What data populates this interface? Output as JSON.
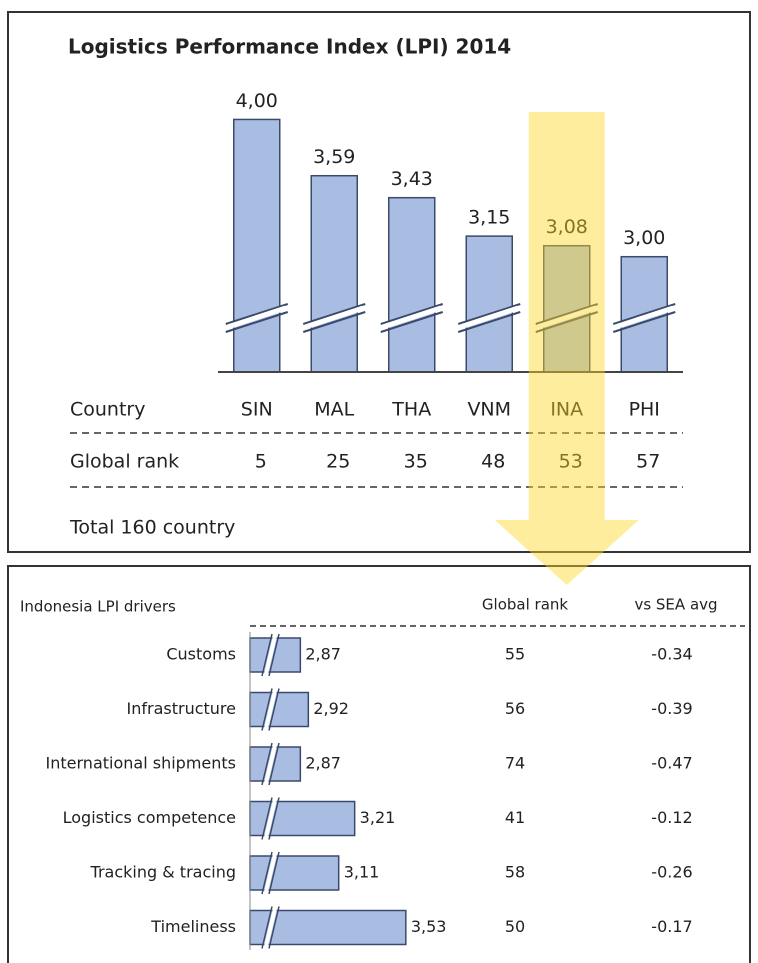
{
  "chart_data": [
    {
      "type": "bar",
      "title": "Logistics Performance Index (LPI) 2014",
      "categories": [
        "SIN",
        "MAL",
        "THA",
        "VNM",
        "INA",
        "PHI"
      ],
      "values": [
        4.0,
        3.59,
        3.43,
        3.15,
        3.08,
        3.0
      ],
      "value_labels": [
        "4,00",
        "3,59",
        "3,43",
        "3,15",
        "3,08",
        "3,00"
      ],
      "row_labels": [
        "Country",
        "Global rank"
      ],
      "ranks": [
        5,
        25,
        35,
        48,
        53,
        57
      ],
      "note": "Total 160 country",
      "highlight": "INA",
      "color": "#a9bde2",
      "ylim": [
        2.16,
        4.2
      ]
    },
    {
      "type": "hbar",
      "title": "Indonesia LPI drivers",
      "columns": [
        "Global rank",
        "vs SEA avg"
      ],
      "categories": [
        "Customs",
        "Infrastructure",
        "International shipments",
        "Logistics competence",
        "Tracking & tracing",
        "Timeliness"
      ],
      "values": [
        2.87,
        2.92,
        2.87,
        3.21,
        3.11,
        3.53
      ],
      "value_labels": [
        "2,87",
        "2,92",
        "2,87",
        "3,21",
        "3,11",
        "3,53"
      ],
      "ranks": [
        55,
        56,
        74,
        41,
        58,
        50
      ],
      "vs_sea_avg": [
        -0.34,
        -0.39,
        -0.47,
        -0.12,
        -0.26,
        -0.17
      ],
      "color": "#a9bde2",
      "xlim": [
        2.555,
        3.6
      ]
    }
  ]
}
